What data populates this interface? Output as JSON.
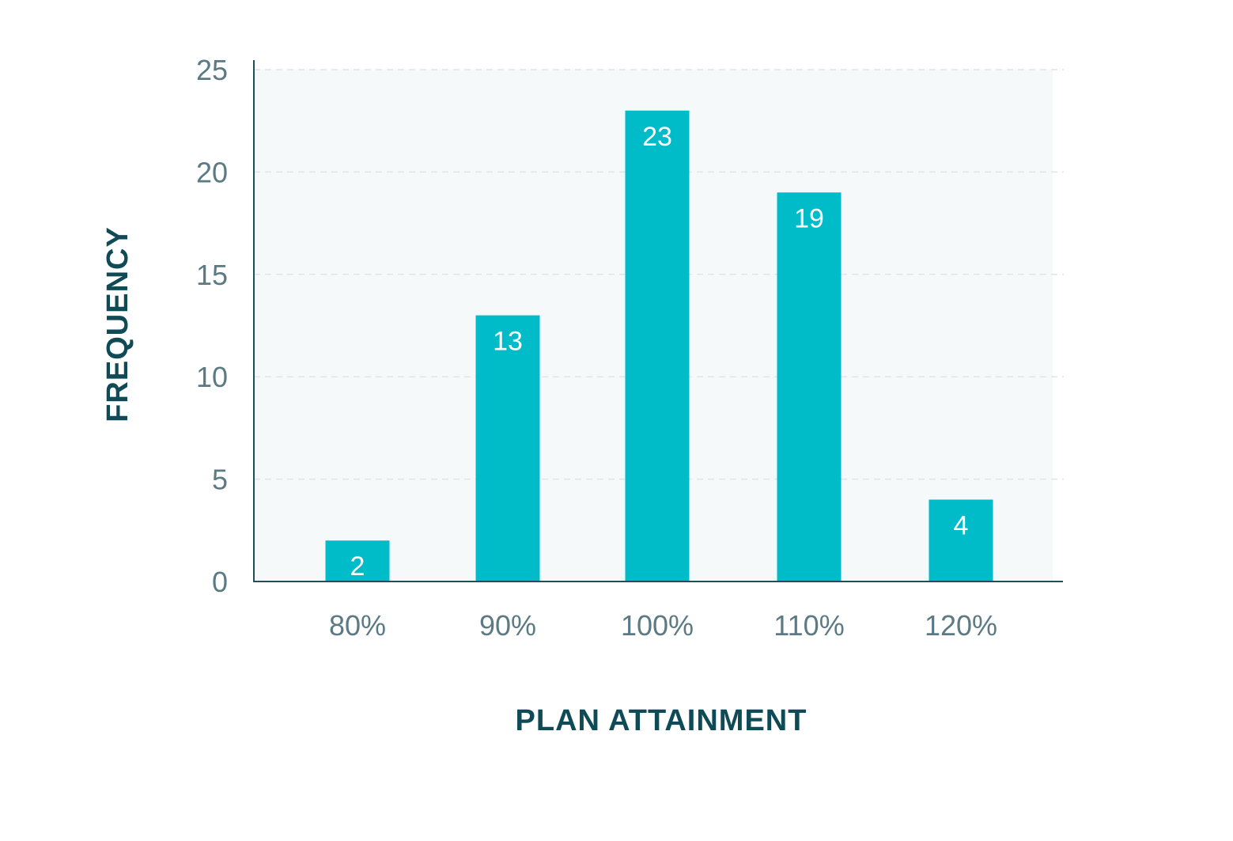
{
  "chart_data": {
    "type": "bar",
    "categories": [
      "80%",
      "90%",
      "100%",
      "110%",
      "120%"
    ],
    "values": [
      2,
      13,
      23,
      19,
      4
    ],
    "xlabel": "PLAN ATTAINMENT",
    "ylabel": "FREQUENCY",
    "ylim": [
      0,
      25
    ],
    "yticks": [
      "0",
      "5",
      "10",
      "15",
      "20",
      "25"
    ],
    "grid": true,
    "data_labels": [
      "2",
      "13",
      "23",
      "19",
      "4"
    ],
    "colors": {
      "bar": "#00bcc9",
      "plot_background": "#f6f9fa",
      "axis_title": "#0f4a57",
      "tick_text": "#5c7a84"
    }
  }
}
